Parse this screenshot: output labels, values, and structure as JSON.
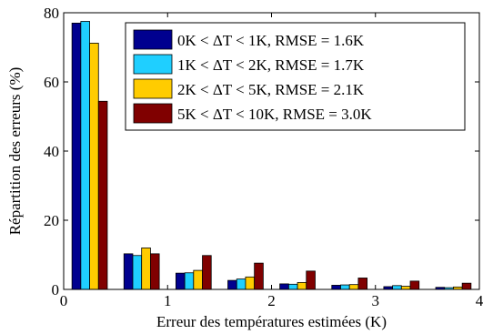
{
  "chart_data": {
    "type": "bar",
    "title": "",
    "xlabel": "Erreur des températures estimées (K)",
    "ylabel": "Répartition des erreurs (%)",
    "xlim": [
      0,
      4
    ],
    "ylim": [
      0,
      80
    ],
    "xticks": [
      0,
      1,
      2,
      3,
      4
    ],
    "yticks": [
      0,
      20,
      40,
      60,
      80
    ],
    "grid": false,
    "legend_position": "top-right",
    "x": [
      0.25,
      0.75,
      1.25,
      1.75,
      2.25,
      2.75,
      3.25,
      3.75
    ],
    "series": [
      {
        "name": "0K < ΔT < 1K, RMSE = 1.6K",
        "color": "#00008f",
        "values": [
          77.0,
          10.3,
          4.7,
          2.6,
          1.6,
          1.2,
          0.8,
          0.6
        ]
      },
      {
        "name": "1K < ΔT < 2K, RMSE = 1.7K",
        "color": "#1fcfff",
        "values": [
          77.5,
          9.8,
          4.8,
          3.0,
          1.5,
          1.3,
          1.1,
          0.5
        ]
      },
      {
        "name": "2K < ΔT < 5K, RMSE = 2.1K",
        "color": "#ffcc00",
        "values": [
          71.2,
          12.0,
          5.5,
          3.6,
          2.0,
          1.4,
          0.9,
          0.7
        ]
      },
      {
        "name": "5K < ΔT < 10K, RMSE = 3.0K",
        "color": "#800000",
        "values": [
          54.4,
          10.3,
          9.8,
          7.6,
          5.3,
          3.3,
          2.4,
          1.8
        ]
      }
    ]
  }
}
